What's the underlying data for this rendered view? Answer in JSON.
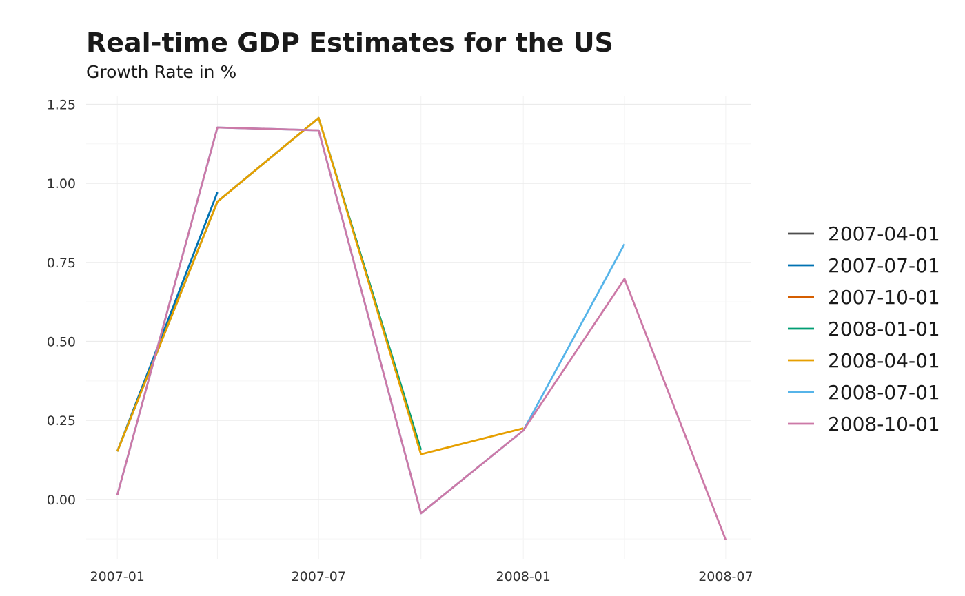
{
  "chart_data": {
    "type": "line",
    "title": "Real-time GDP Estimates for the US",
    "subtitle": "Growth Rate in %",
    "xlabel": "",
    "ylabel": "",
    "x": [
      "2007-01-01",
      "2007-04-01",
      "2007-07-01",
      "2007-10-01",
      "2008-01-01",
      "2008-04-01",
      "2008-07-01"
    ],
    "x_tick_labels": [
      "2007-01",
      "2007-07",
      "2008-01",
      "2008-07"
    ],
    "x_tick_dates": [
      "2007-01-01",
      "2007-07-01",
      "2008-01-01",
      "2008-07-01"
    ],
    "y_tick_labels": [
      "0.00",
      "0.25",
      "0.50",
      "0.75",
      "1.00",
      "1.25"
    ],
    "y_ticks": [
      0,
      0.25,
      0.5,
      0.75,
      1.0,
      1.25
    ],
    "xlim": [
      "2006-12-04",
      "2008-07-24"
    ],
    "ylim": [
      -0.19,
      1.275
    ],
    "grid": true,
    "legend_position": "right",
    "series": [
      {
        "name": "2007-04-01",
        "color": "#4d4d4d",
        "values": [
          0.152,
          null,
          null,
          null,
          null,
          null,
          null
        ]
      },
      {
        "name": "2007-07-01",
        "color": "#0072B2",
        "values": [
          0.152,
          0.972,
          null,
          null,
          null,
          null,
          null
        ]
      },
      {
        "name": "2007-10-01",
        "color": "#D55E00",
        "values": [
          0.152,
          0.942,
          1.207,
          null,
          null,
          null,
          null
        ]
      },
      {
        "name": "2008-01-01",
        "color": "#009E73",
        "values": [
          0.152,
          0.942,
          1.207,
          0.157,
          null,
          null,
          null
        ]
      },
      {
        "name": "2008-04-01",
        "color": "#E69F00",
        "values": [
          0.152,
          0.942,
          1.207,
          0.143,
          0.225,
          null,
          null
        ]
      },
      {
        "name": "2008-07-01",
        "color": "#56B4E9",
        "values": [
          0.014,
          1.177,
          1.168,
          -0.044,
          0.218,
          0.808,
          null
        ]
      },
      {
        "name": "2008-10-01",
        "color": "#CC79A7",
        "values": [
          0.014,
          1.177,
          1.168,
          -0.044,
          0.218,
          0.698,
          -0.128
        ]
      }
    ]
  }
}
